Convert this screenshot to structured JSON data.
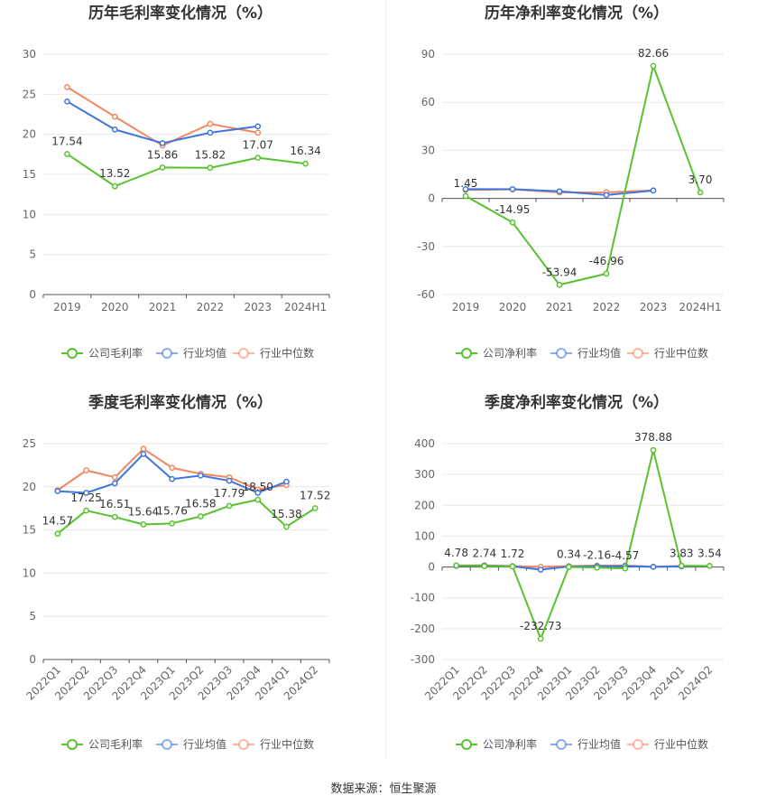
{
  "legend_labels": {
    "gross": [
      "公司毛利率",
      "行业均值",
      "行业中位数"
    ],
    "net": [
      "公司净利率",
      "行业均值",
      "行业中位数"
    ]
  },
  "colors": {
    "company": "#58c22f",
    "avg": "#3e76dd",
    "median": "#f38760"
  },
  "footer": "数据来源：恒生聚源",
  "chart_data": [
    {
      "type": "line",
      "title": "历年毛利率变化情况（%）",
      "categories": [
        "2019",
        "2020",
        "2021",
        "2022",
        "2023",
        "2024H1"
      ],
      "ylim": [
        0,
        30
      ],
      "yticks": [
        0,
        5,
        10,
        15,
        20,
        25,
        30
      ],
      "series": [
        {
          "name": "公司毛利率",
          "values": [
            17.54,
            13.52,
            15.86,
            15.82,
            17.07,
            16.34
          ],
          "labels": [
            "17.54",
            "13.52",
            "15.86",
            "15.82",
            "17.07",
            "16.34"
          ]
        },
        {
          "name": "行业均值",
          "values": [
            24.1,
            20.6,
            18.9,
            20.2,
            21.0,
            null
          ]
        },
        {
          "name": "行业中位数",
          "values": [
            25.9,
            22.2,
            18.6,
            21.3,
            20.2,
            null
          ]
        }
      ]
    },
    {
      "type": "line",
      "title": "历年净利率变化情况（%）",
      "categories": [
        "2019",
        "2020",
        "2021",
        "2022",
        "2023",
        "2024H1"
      ],
      "ylim": [
        -60,
        90
      ],
      "yticks": [
        -60,
        -30,
        0,
        30,
        60,
        90
      ],
      "series": [
        {
          "name": "公司净利率",
          "values": [
            1.45,
            -14.95,
            -53.94,
            -46.96,
            82.66,
            3.7
          ],
          "labels": [
            "1.45",
            "-14.95",
            "-53.94",
            "-46.96",
            "82.66",
            "3.70"
          ]
        },
        {
          "name": "行业均值",
          "values": [
            5.8,
            5.8,
            4.4,
            2.1,
            4.9,
            null
          ]
        },
        {
          "name": "行业中位数",
          "values": [
            5.3,
            5.6,
            3.7,
            3.8,
            5.0,
            null
          ]
        }
      ]
    },
    {
      "type": "line",
      "title": "季度毛利率变化情况（%）",
      "categories": [
        "2022Q1",
        "2022Q2",
        "2022Q3",
        "2022Q4",
        "2023Q1",
        "2023Q2",
        "2023Q3",
        "2023Q4",
        "2024Q1",
        "2024Q2"
      ],
      "ylim": [
        0,
        25
      ],
      "yticks": [
        0,
        5,
        10,
        15,
        20,
        25
      ],
      "series": [
        {
          "name": "公司毛利率",
          "values": [
            14.57,
            17.25,
            16.51,
            15.64,
            15.76,
            16.58,
            17.79,
            18.5,
            15.38,
            17.52
          ],
          "labels": [
            "14.57",
            "17.25",
            "16.51",
            "15.64",
            "15.76",
            "16.58",
            "17.79",
            "18.50",
            "15.38",
            "17.52"
          ]
        },
        {
          "name": "行业均值",
          "values": [
            19.5,
            19.3,
            20.4,
            23.8,
            20.9,
            21.3,
            20.7,
            19.3,
            20.6,
            null
          ]
        },
        {
          "name": "行业中位数",
          "values": [
            19.6,
            21.9,
            21.1,
            24.4,
            22.2,
            21.5,
            21.1,
            19.7,
            20.2,
            null
          ]
        }
      ]
    },
    {
      "type": "line",
      "title": "季度净利率变化情况（%）",
      "categories": [
        "2022Q1",
        "2022Q2",
        "2022Q3",
        "2022Q4",
        "2023Q1",
        "2023Q2",
        "2023Q3",
        "2023Q4",
        "2024Q1",
        "2024Q2"
      ],
      "ylim": [
        -300,
        400
      ],
      "yticks": [
        -300,
        -200,
        -100,
        0,
        100,
        200,
        300,
        400
      ],
      "series": [
        {
          "name": "公司净利率",
          "values": [
            4.78,
            2.74,
            1.72,
            -232.73,
            0.34,
            -2.16,
            -4.57,
            378.88,
            3.83,
            3.54
          ],
          "labels": [
            "4.78",
            "2.74",
            "1.72",
            "-232.73",
            "0.34",
            "-2.16",
            "-4.57",
            "378.88",
            "3.83",
            "3.54"
          ]
        },
        {
          "name": "行业均值",
          "values": [
            3.5,
            4.2,
            2.0,
            -8.5,
            1.5,
            2.5,
            2.8,
            0.6,
            2.0,
            null
          ]
        },
        {
          "name": "行业中位数",
          "values": [
            5.0,
            5.5,
            3.0,
            0.5,
            3.0,
            4.5,
            4.8,
            1.0,
            3.5,
            null
          ]
        }
      ]
    }
  ]
}
